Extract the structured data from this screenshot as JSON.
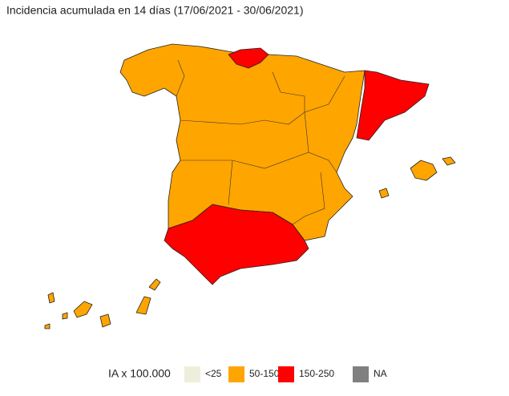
{
  "title": "Incidencia acumulada en 14 días (17/06/2021 - 30/06/2021)",
  "legend": {
    "title": "IA x 100.000",
    "items": [
      {
        "label": "<25",
        "color": "#eeeedc"
      },
      {
        "label": "50-150",
        "color": "#ffa500"
      },
      {
        "label": "150-250",
        "color": "#ff0000"
      },
      {
        "label": "NA",
        "color": "#808080"
      }
    ]
  }
}
